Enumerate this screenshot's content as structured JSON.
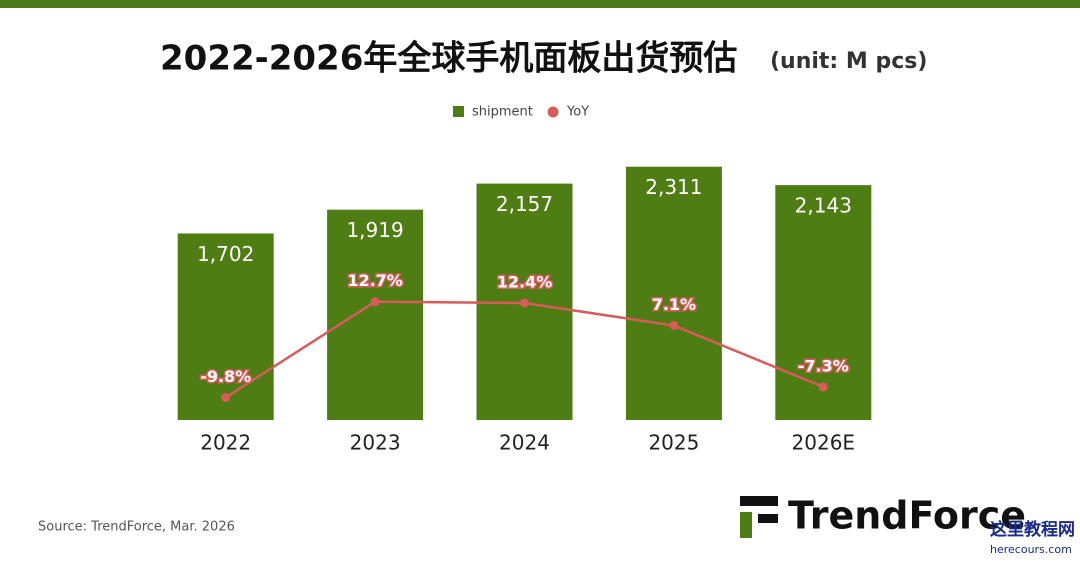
{
  "chart_data": {
    "type": "bar",
    "title": "2022-2026年全球手机面板出货预估",
    "subtitle": "(unit: M pcs)",
    "categories": [
      "2022",
      "2023",
      "2024",
      "2025",
      "2026E"
    ],
    "series": [
      {
        "name": "shipment",
        "type": "bar",
        "color": "#4e7d14",
        "values": [
          1702,
          1919,
          2157,
          2311,
          2143
        ],
        "value_labels": [
          "1,702",
          "1,919",
          "2,157",
          "2,311",
          "2,143"
        ]
      },
      {
        "name": "YoY",
        "type": "line",
        "axis": "y2",
        "color": "#d95b5b",
        "values": [
          -9.8,
          12.7,
          12.4,
          7.1,
          -7.3
        ],
        "value_labels": [
          "-9.8%",
          "12.7%",
          "12.4%",
          "7.1%",
          "-7.3%"
        ]
      }
    ],
    "ylim": [
      0,
      2500
    ],
    "y2lim": [
      -20,
      30
    ],
    "source": "Source: TrendForce, Mar. 2026",
    "logo": "TrendForce",
    "watermark": "这里教程网",
    "watermark_url": "herecours.com"
  }
}
